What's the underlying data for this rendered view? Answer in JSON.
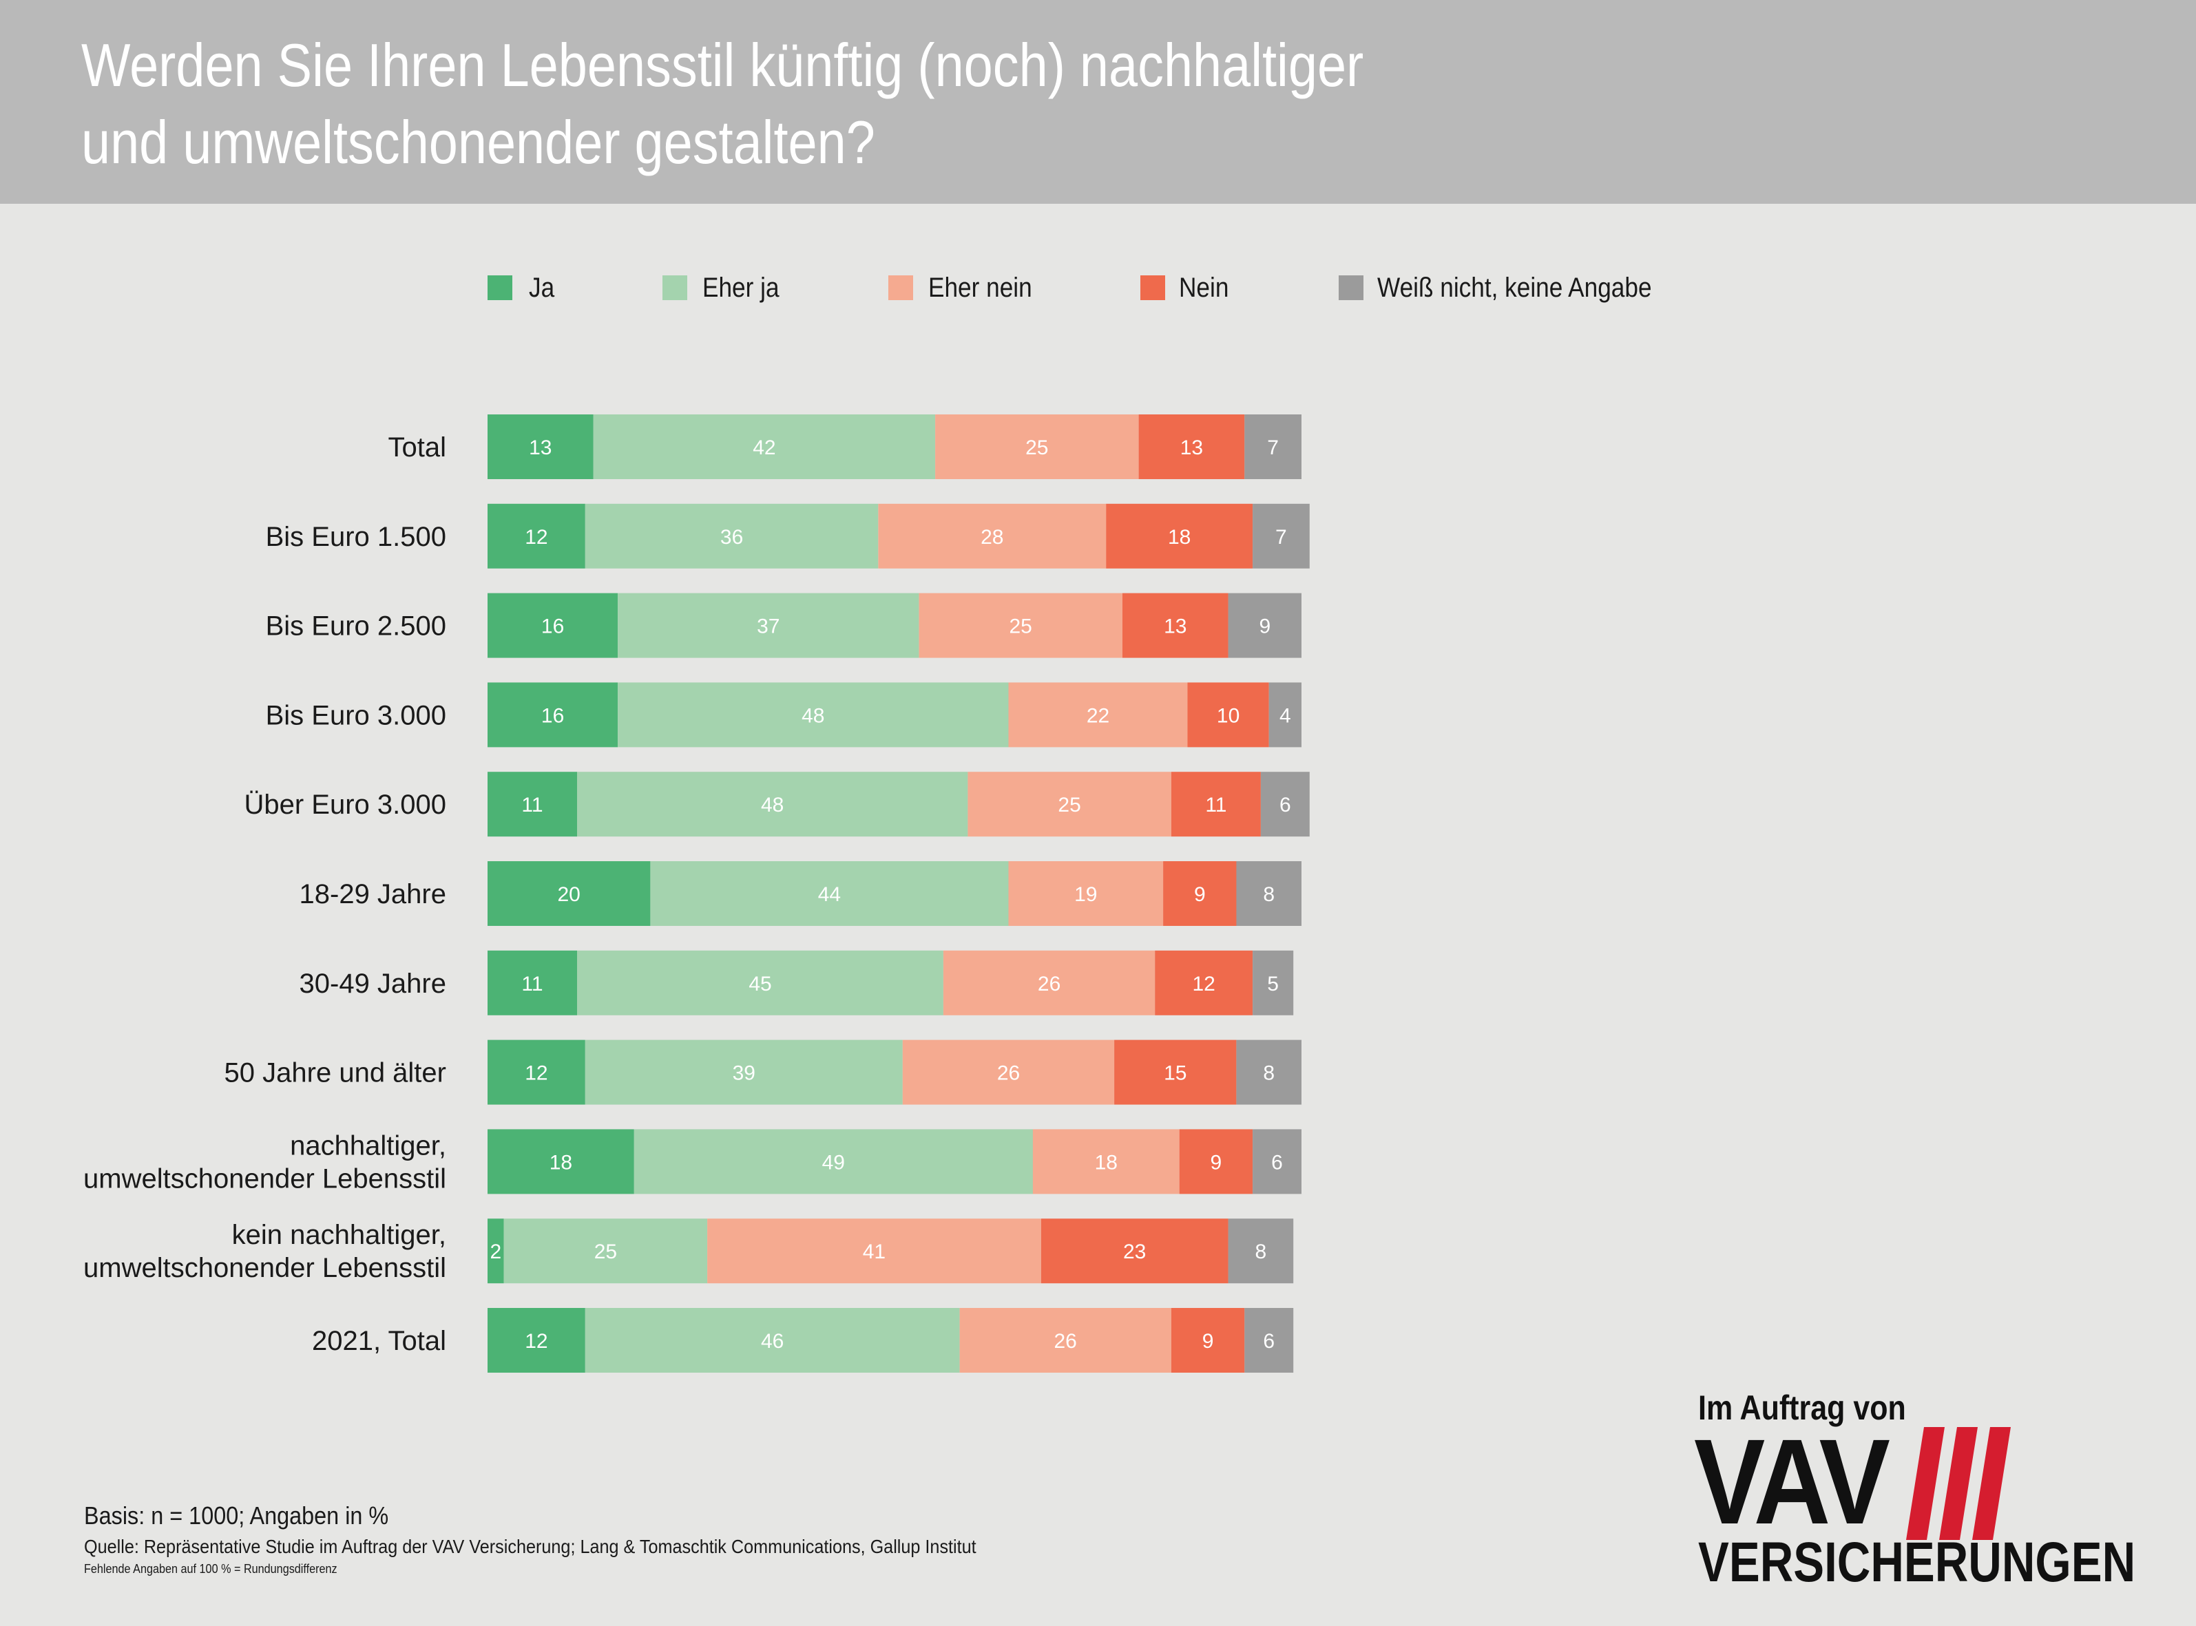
{
  "header": {
    "title_line1": "Werden Sie Ihren Lebensstil künftig (noch) nachhaltiger",
    "title_line2": "und umweltschonender gestalten?"
  },
  "colors": {
    "header_bg": "#b9b9b9",
    "page_bg": "#e6e6e4",
    "ja": "#4cb374",
    "eher_ja": "#a4d3ae",
    "eher_nein": "#f5aa90",
    "nein": "#ef6a4c",
    "weiss_nicht": "#9b9b9b"
  },
  "chart_data": {
    "type": "bar",
    "orientation": "horizontal",
    "stacked": true,
    "title": "Werden Sie Ihren Lebensstil künftig (noch) nachhaltiger und umweltschonender gestalten?",
    "unit": "%",
    "legend_position": "top",
    "grid": false,
    "xlim": [
      0,
      100
    ],
    "categories": [
      "Total",
      "Bis Euro 1.500",
      "Bis Euro 2.500",
      "Bis Euro 3.000",
      "Über Euro 3.000",
      "18-29 Jahre",
      "30-49 Jahre",
      "50 Jahre und älter",
      "nachhaltiger, umweltschonender Lebensstil",
      "kein nachhaltiger, umweltschonender Lebensstil",
      "2021, Total"
    ],
    "category_lines": [
      [
        "Total"
      ],
      [
        "Bis Euro 1.500"
      ],
      [
        "Bis Euro 2.500"
      ],
      [
        "Bis Euro 3.000"
      ],
      [
        "Über Euro 3.000"
      ],
      [
        "18-29 Jahre"
      ],
      [
        "30-49 Jahre"
      ],
      [
        "50 Jahre und älter"
      ],
      [
        "nachhaltiger,",
        "umweltschonender Lebensstil"
      ],
      [
        "kein nachhaltiger,",
        "umweltschonender Lebensstil"
      ],
      [
        "2021, Total"
      ]
    ],
    "series": [
      {
        "name": "Ja",
        "color": "#4cb374",
        "values": [
          13,
          12,
          16,
          16,
          11,
          20,
          11,
          12,
          18,
          2,
          12
        ]
      },
      {
        "name": "Eher ja",
        "color": "#a4d3ae",
        "values": [
          42,
          36,
          37,
          48,
          48,
          44,
          45,
          39,
          49,
          25,
          46
        ]
      },
      {
        "name": "Eher nein",
        "color": "#f5aa90",
        "values": [
          25,
          28,
          25,
          22,
          25,
          19,
          26,
          26,
          18,
          41,
          26
        ]
      },
      {
        "name": "Nein",
        "color": "#ef6a4c",
        "values": [
          13,
          18,
          13,
          10,
          11,
          9,
          12,
          15,
          9,
          23,
          9
        ]
      },
      {
        "name": "Weiß nicht, keine Angabe",
        "color": "#9b9b9b",
        "values": [
          7,
          7,
          9,
          4,
          6,
          8,
          5,
          8,
          6,
          8,
          6
        ]
      }
    ]
  },
  "footer": {
    "basis": "Basis: n = 1000; Angaben in %",
    "source": "Quelle: Repräsentative Studie im Auftrag der VAV Versicherung; Lang & Tomaschtik Communications, Gallup Institut",
    "note": "Fehlende Angaben auf 100 % = Rundungsdifferenz"
  },
  "logo": {
    "top_text": "Im Auftrag von",
    "brand": "VAV",
    "bottom_text": "VERSICHERUNGEN",
    "stripe_color": "#d51d2f"
  }
}
